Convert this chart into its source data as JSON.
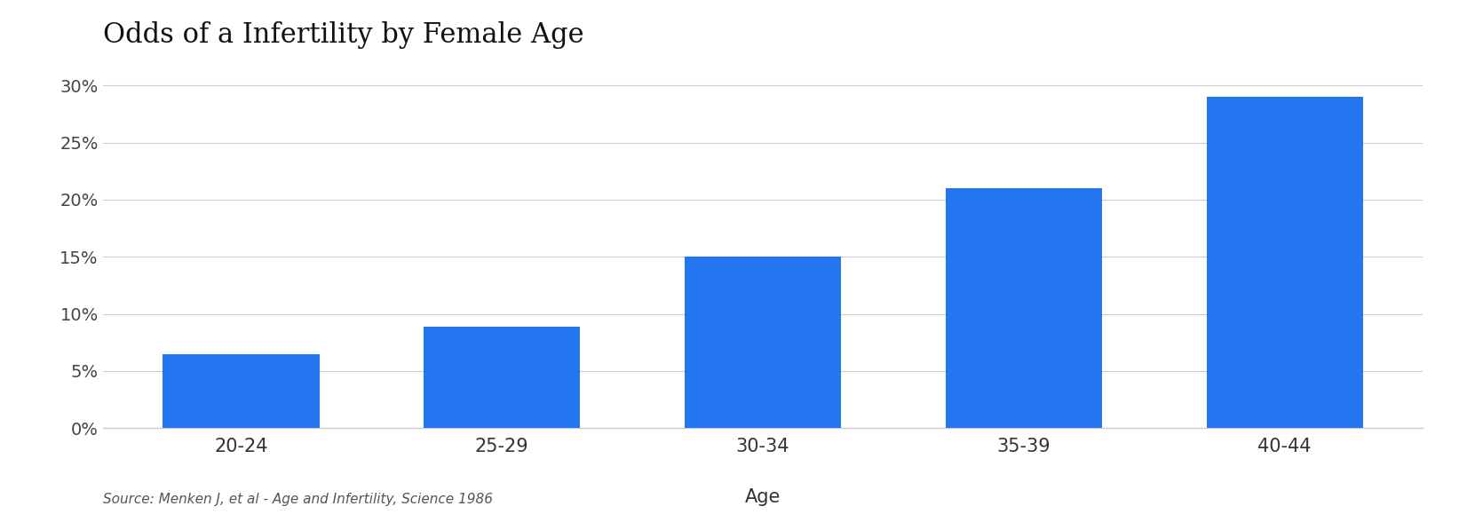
{
  "title": "Odds of a Infertility by Female Age",
  "categories": [
    "20-24",
    "25-29",
    "30-34",
    "35-39",
    "40-44"
  ],
  "values": [
    0.065,
    0.089,
    0.15,
    0.21,
    0.29
  ],
  "bar_color": "#2475f0",
  "xlabel": "Age",
  "ylim": [
    0,
    0.32
  ],
  "yticks": [
    0.0,
    0.05,
    0.1,
    0.15,
    0.2,
    0.25,
    0.3
  ],
  "ytick_labels": [
    "0%",
    "5%",
    "10%",
    "15%",
    "20%",
    "25%",
    "30%"
  ],
  "title_fontsize": 22,
  "xlabel_fontsize": 15,
  "tick_fontsize": 14,
  "source_text": "Source: Menken J, et al - Age and Infertility, Science 1986",
  "source_fontsize": 11,
  "background_color": "#ffffff",
  "grid_color": "#cccccc",
  "bar_width": 0.6
}
